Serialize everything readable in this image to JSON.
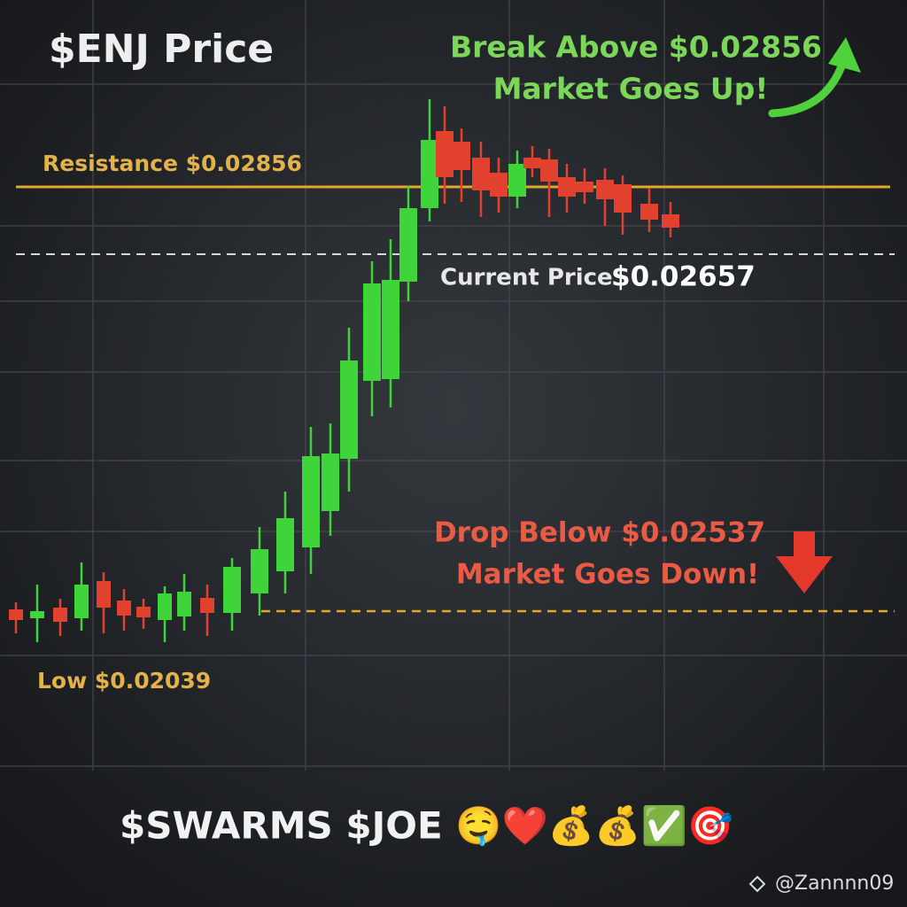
{
  "title": "$ENJ Price",
  "annotations": {
    "break_above": {
      "line1": "Break Above $0.02856",
      "line2": "Market Goes Up!"
    },
    "resistance": "Resistance $0.02856",
    "current_price": {
      "label": "Current Price",
      "value": "$0.02657"
    },
    "drop_below": {
      "line1": "Drop Below $0.02537",
      "line2": "Market Goes Down!"
    },
    "low": "Low $0.02039"
  },
  "footer": "$SWARMS $JOE 🤤❤️💰💰✅🎯",
  "watermark": "@Zannnn09"
}
